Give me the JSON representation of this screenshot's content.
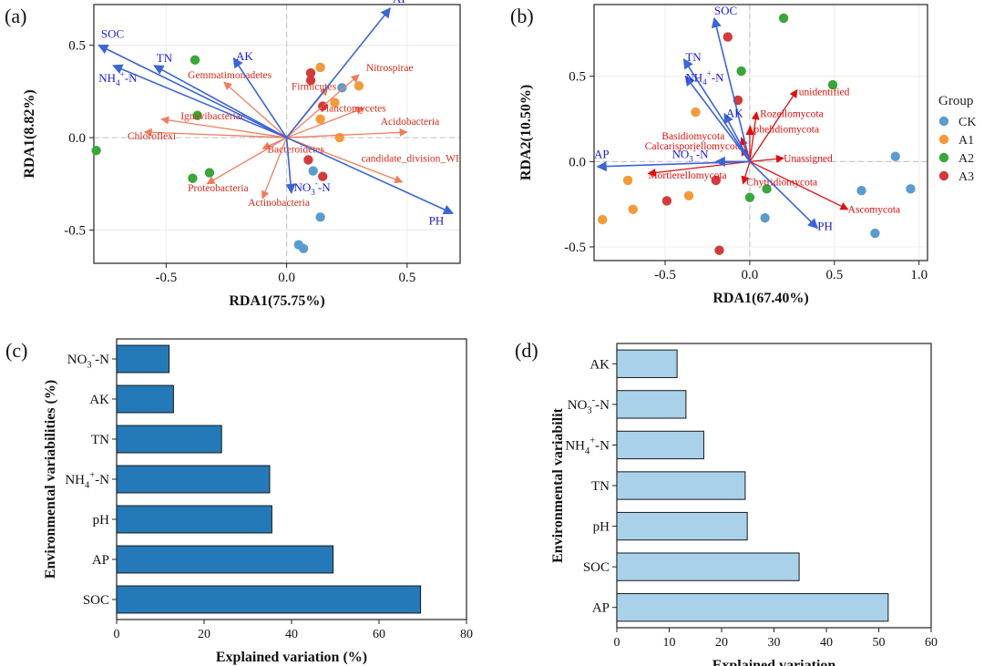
{
  "colors": {
    "env_arrow": "#3b64d6",
    "env_text": "#1a1adf",
    "species_arrow": "#f27b5c",
    "species_text": "#d92a1a",
    "fungi_arrow": "#dd1111",
    "fungi_text": "#e01010",
    "zero_line": "#c8c8c8",
    "group_CK": "#5b9ccf",
    "group_A1": "#f39a3b",
    "group_A2": "#3aa63a",
    "group_A3": "#d33b3b",
    "bar_c": "#2479b8",
    "bar_d": "#a9d1ea"
  },
  "chart_data": [
    {
      "panel": "(a)",
      "type": "scatter",
      "xlabel": "RDA1(75.75%)",
      "ylabel": "RDA1(8.82%)",
      "xlim": [
        -0.8,
        0.72
      ],
      "ylim": [
        -0.68,
        0.72
      ],
      "xticks": [
        "-0.5",
        "0.0",
        "0.5"
      ],
      "xtick_values": [
        -0.5,
        0.0,
        0.5
      ],
      "yticks": [
        "-0.5",
        "0.0",
        "0.5"
      ],
      "ytick_values": [
        -0.5,
        0.0,
        0.5
      ],
      "env_vectors": [
        {
          "label": "AP",
          "x": 0.43,
          "y": 0.7,
          "lx": 0.44,
          "ly": 0.73
        },
        {
          "label": "SOC",
          "x": -0.78,
          "y": 0.5,
          "lx": -0.77,
          "ly": 0.54
        },
        {
          "label": "TN",
          "x": -0.55,
          "y": 0.39,
          "lx": -0.54,
          "ly": 0.41
        },
        {
          "label": "NH4+-N",
          "sup": "+",
          "sub": "4",
          "base": "NH",
          "tail": "-N",
          "x": -0.72,
          "y": 0.39,
          "lx": -0.78,
          "ly": 0.3
        },
        {
          "label": "AK",
          "x": -0.22,
          "y": 0.43,
          "lx": -0.21,
          "ly": 0.42
        },
        {
          "label": "NO3--N",
          "sup": "-",
          "sub": "3",
          "base": "NO",
          "tail": "-N",
          "x": 0.02,
          "y": -0.3,
          "lx": 0.03,
          "ly": -0.29
        },
        {
          "label": "PH",
          "x": 0.69,
          "y": -0.41,
          "lx": 0.59,
          "ly": -0.47
        }
      ],
      "species_vectors": [
        {
          "label": "Nitrospirae",
          "x": 0.3,
          "y": 0.34,
          "lx": 0.33,
          "ly": 0.36
        },
        {
          "label": "Gemmatimonadetes",
          "x": -0.26,
          "y": 0.3,
          "lx": -0.41,
          "ly": 0.32
        },
        {
          "label": "Firmicutes",
          "x": 0.17,
          "y": 0.27,
          "lx": 0.02,
          "ly": 0.26
        },
        {
          "label": "Planctomycetes",
          "x": 0.32,
          "y": 0.16,
          "lx": 0.14,
          "ly": 0.14
        },
        {
          "label": "Acidobacteria",
          "x": 0.5,
          "y": 0.03,
          "lx": 0.39,
          "ly": 0.07
        },
        {
          "label": "Ignavibacteriae",
          "x": -0.52,
          "y": 0.1,
          "lx": -0.44,
          "ly": 0.1
        },
        {
          "label": "Chloroflexi",
          "x": -0.59,
          "y": 0.03,
          "lx": -0.66,
          "ly": -0.01
        },
        {
          "label": "Bacteroidetes",
          "x": -0.1,
          "y": -0.06,
          "lx": -0.08,
          "ly": -0.08
        },
        {
          "label": "candidate_division_WI",
          "x": 0.48,
          "y": -0.24,
          "lx": 0.31,
          "ly": -0.13
        },
        {
          "label": "Proteobacteria",
          "x": -0.33,
          "y": -0.25,
          "lx": -0.41,
          "ly": -0.29
        },
        {
          "label": "Actinobacteria",
          "x": -0.1,
          "y": -0.33,
          "lx": -0.16,
          "ly": -0.37
        }
      ],
      "points": [
        {
          "g": "A2",
          "x": -0.38,
          "y": 0.42
        },
        {
          "g": "A2",
          "x": -0.37,
          "y": 0.12
        },
        {
          "g": "A2",
          "x": -0.79,
          "y": -0.07
        },
        {
          "g": "A2",
          "x": -0.32,
          "y": -0.19
        },
        {
          "g": "A2",
          "x": -0.39,
          "y": -0.22
        },
        {
          "g": "A1",
          "x": 0.14,
          "y": 0.38
        },
        {
          "g": "A1",
          "x": 0.3,
          "y": 0.28
        },
        {
          "g": "A1",
          "x": 0.2,
          "y": 0.19
        },
        {
          "g": "A1",
          "x": 0.14,
          "y": 0.1
        },
        {
          "g": "A1",
          "x": 0.22,
          "y": 0.0
        },
        {
          "g": "A3",
          "x": 0.1,
          "y": 0.35
        },
        {
          "g": "A3",
          "x": 0.1,
          "y": 0.31
        },
        {
          "g": "A3",
          "x": 0.15,
          "y": 0.17
        },
        {
          "g": "A3",
          "x": 0.09,
          "y": -0.12
        },
        {
          "g": "A3",
          "x": 0.15,
          "y": -0.21
        },
        {
          "g": "CK",
          "x": 0.23,
          "y": 0.27
        },
        {
          "g": "CK",
          "x": 0.11,
          "y": -0.18
        },
        {
          "g": "CK",
          "x": 0.14,
          "y": -0.43
        },
        {
          "g": "CK",
          "x": 0.05,
          "y": -0.58
        },
        {
          "g": "CK",
          "x": 0.07,
          "y": -0.6
        }
      ]
    },
    {
      "panel": "(b)",
      "type": "scatter",
      "xlabel": "RDA1(67.40%)",
      "ylabel": "RDA2(10.50%)",
      "xlim": [
        -0.92,
        1.05
      ],
      "ylim": [
        -0.58,
        0.92
      ],
      "xticks": [
        "-0.5",
        "0.0",
        "0.5",
        "1.0"
      ],
      "xtick_values": [
        -0.5,
        0.0,
        0.5,
        1.0
      ],
      "yticks": [
        "-0.5",
        "0.0",
        "0.5"
      ],
      "ytick_values": [
        -0.5,
        0.0,
        0.5
      ],
      "env_vectors": [
        {
          "label": "SOC",
          "x": -0.21,
          "y": 0.84,
          "lx": -0.21,
          "ly": 0.86
        },
        {
          "label": "TN",
          "x": -0.39,
          "y": 0.6,
          "lx": -0.38,
          "ly": 0.59
        },
        {
          "label": "NH4+-N",
          "sup": "+",
          "sub": "4",
          "base": "NH",
          "tail": "-N",
          "x": -0.38,
          "y": 0.5,
          "lx": -0.38,
          "ly": 0.47
        },
        {
          "label": "AK",
          "x": -0.15,
          "y": 0.28,
          "lx": -0.14,
          "ly": 0.26
        },
        {
          "label": "NO3--N",
          "sup": "-",
          "sub": "3",
          "base": "NO",
          "tail": "-N",
          "x": -0.2,
          "y": 0.0,
          "lx": -0.46,
          "ly": 0.02
        },
        {
          "label": "AP",
          "x": -0.9,
          "y": -0.03,
          "lx": -0.92,
          "ly": 0.02
        },
        {
          "label": "PH",
          "x": 0.4,
          "y": -0.39,
          "lx": 0.4,
          "ly": -0.4
        }
      ],
      "species_vectors": [
        {
          "label": "unidentified",
          "x": 0.28,
          "y": 0.42,
          "lx": 0.29,
          "ly": 0.39
        },
        {
          "label": "Rozellomycota",
          "x": 0.04,
          "y": 0.29,
          "lx": 0.06,
          "ly": 0.26
        },
        {
          "label": "Aphelidiomycota",
          "x": 0.0,
          "y": 0.2,
          "lx": -0.02,
          "ly": 0.17
        },
        {
          "label": "Basidiomycota",
          "x": -0.05,
          "y": 0.14,
          "lx": -0.52,
          "ly": 0.13
        },
        {
          "label": "Calcarisporiellomycota",
          "x": -0.05,
          "y": 0.08,
          "lx": -0.62,
          "ly": 0.07
        },
        {
          "label": "Unassigned",
          "x": 0.2,
          "y": 0.02,
          "lx": 0.2,
          "ly": 0.0
        },
        {
          "label": "Mortierellomycota",
          "x": -0.6,
          "y": -0.07,
          "lx": -0.6,
          "ly": -0.1
        },
        {
          "label": "Chytridiomycota",
          "x": -0.04,
          "y": -0.13,
          "lx": -0.02,
          "ly": -0.14
        },
        {
          "label": "Ascomycota",
          "x": 0.58,
          "y": -0.28,
          "lx": 0.58,
          "ly": -0.3
        }
      ],
      "points": [
        {
          "g": "A2",
          "x": 0.2,
          "y": 0.84
        },
        {
          "g": "A2",
          "x": 0.49,
          "y": 0.45
        },
        {
          "g": "A2",
          "x": -0.05,
          "y": 0.53
        },
        {
          "g": "A2",
          "x": 0.1,
          "y": -0.16
        },
        {
          "g": "A2",
          "x": 0.0,
          "y": -0.21
        },
        {
          "g": "A3",
          "x": -0.13,
          "y": 0.73
        },
        {
          "g": "A3",
          "x": -0.07,
          "y": 0.36
        },
        {
          "g": "A3",
          "x": -0.2,
          "y": -0.11
        },
        {
          "g": "A3",
          "x": -0.49,
          "y": -0.23
        },
        {
          "g": "A3",
          "x": -0.18,
          "y": -0.52
        },
        {
          "g": "A1",
          "x": -0.32,
          "y": 0.29
        },
        {
          "g": "A1",
          "x": -0.72,
          "y": -0.11
        },
        {
          "g": "A1",
          "x": -0.36,
          "y": -0.2
        },
        {
          "g": "A1",
          "x": -0.69,
          "y": -0.28
        },
        {
          "g": "A1",
          "x": -0.87,
          "y": -0.34
        },
        {
          "g": "CK",
          "x": 0.86,
          "y": 0.03
        },
        {
          "g": "CK",
          "x": 0.66,
          "y": -0.17
        },
        {
          "g": "CK",
          "x": 0.95,
          "y": -0.16
        },
        {
          "g": "CK",
          "x": 0.09,
          "y": -0.33
        },
        {
          "g": "CK",
          "x": 0.74,
          "y": -0.42
        }
      ],
      "legend": {
        "title": "Group",
        "entries": [
          "CK",
          "A1",
          "A2",
          "A3"
        ],
        "position": "right"
      }
    },
    {
      "panel": "(c)",
      "type": "bar",
      "orientation": "horizontal",
      "xlabel": "Explained variation (%)",
      "ylabel": "Environmental variabilities (%)",
      "xlim": [
        0,
        80
      ],
      "xticks": [
        "0",
        "20",
        "40",
        "60",
        "80"
      ],
      "xtick_values": [
        0,
        20,
        40,
        60,
        80
      ],
      "categories": [
        "NO3--N",
        "AK",
        "TN",
        "NH4+-N",
        "pH",
        "AP",
        "SOC"
      ],
      "category_markup": [
        {
          "base": "NO",
          "sub": "3",
          "sup": "-",
          "tail": "-N"
        },
        {
          "base": "AK"
        },
        {
          "base": "TN"
        },
        {
          "base": "NH",
          "sub": "4",
          "sup": "+",
          "tail": "-N"
        },
        {
          "base": "pH"
        },
        {
          "base": "AP"
        },
        {
          "base": "SOC"
        }
      ],
      "values": [
        12,
        13,
        24,
        35,
        35.5,
        49.5,
        69.5
      ]
    },
    {
      "panel": "(d)",
      "type": "bar",
      "orientation": "horizontal",
      "xlabel": "Explained variation",
      "ylabel": "Environmental variabilit",
      "xlim": [
        0,
        60
      ],
      "xticks": [
        "0",
        "10",
        "20",
        "30",
        "40",
        "50",
        "60"
      ],
      "xtick_values": [
        0,
        10,
        20,
        30,
        40,
        50,
        60
      ],
      "categories": [
        "AK",
        "NO3--N",
        "NH4+-N",
        "TN",
        "pH",
        "SOC",
        "AP"
      ],
      "category_markup": [
        {
          "base": "AK"
        },
        {
          "base": "NO",
          "sub": "3",
          "sup": "-",
          "tail": "-N"
        },
        {
          "base": "NH",
          "sub": "4",
          "sup": "+",
          "tail": "-N"
        },
        {
          "base": "TN"
        },
        {
          "base": "pH"
        },
        {
          "base": "SOC"
        },
        {
          "base": "AP"
        }
      ],
      "values": [
        11.5,
        13.2,
        16.6,
        24.5,
        24.9,
        34.8,
        51.8
      ]
    }
  ]
}
